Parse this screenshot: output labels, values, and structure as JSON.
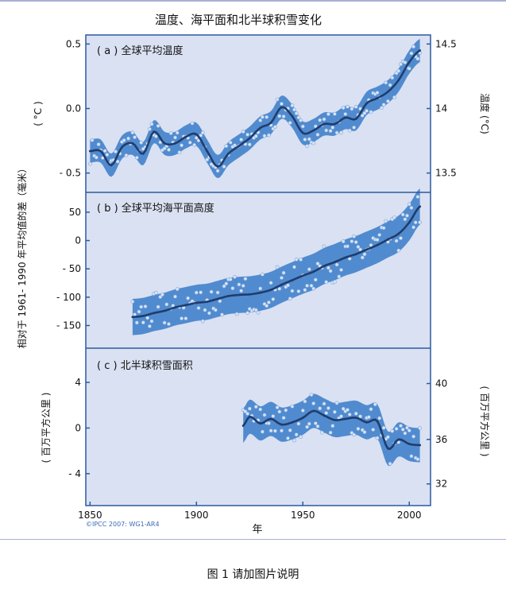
{
  "figure": {
    "title": "温度、海平面和北半球积雪变化",
    "credit": "©IPCC  2007: WG1-AR4",
    "xlabel": "年",
    "shared_ylabel": "相对于 1961- 1990 年平均值的差（毫米）",
    "x_ticks": [
      1850,
      1900,
      1950,
      2000
    ]
  },
  "caption": "图 1 请加图片说明",
  "colors": {
    "panel_bg": "#dae1f2",
    "band": "#4a86cc",
    "line": "#1f3d6e",
    "dots": "#d6e4f6",
    "frame": "#2c5aa0"
  },
  "chart_data": [
    {
      "type": "line",
      "label": "( a ) 全球平均温度",
      "ylabel_left": "( °C )",
      "ylabel_right": "温度 (°C)",
      "xlim": [
        1848,
        2010
      ],
      "ylim": [
        -0.65,
        0.57
      ],
      "left_ticks": [
        {
          "v": 0.5,
          "t": "0.5"
        },
        {
          "v": 0.0,
          "t": "0.0"
        },
        {
          "v": -0.5,
          "t": "- 0.5"
        }
      ],
      "right_ticks": [
        {
          "v": 0.5,
          "t": "14.5"
        },
        {
          "v": 0.0,
          "t": "14"
        },
        {
          "v": -0.5,
          "t": "13.5"
        }
      ],
      "band_width": 0.09,
      "x": [
        1850,
        1855,
        1860,
        1865,
        1870,
        1875,
        1880,
        1885,
        1890,
        1895,
        1900,
        1905,
        1910,
        1915,
        1920,
        1925,
        1930,
        1935,
        1940,
        1945,
        1950,
        1955,
        1960,
        1965,
        1970,
        1975,
        1980,
        1985,
        1990,
        1995,
        2000,
        2005
      ],
      "y": [
        -0.33,
        -0.33,
        -0.44,
        -0.3,
        -0.27,
        -0.35,
        -0.18,
        -0.27,
        -0.27,
        -0.22,
        -0.2,
        -0.33,
        -0.45,
        -0.35,
        -0.29,
        -0.23,
        -0.15,
        -0.11,
        0.01,
        -0.06,
        -0.19,
        -0.17,
        -0.12,
        -0.12,
        -0.07,
        -0.08,
        0.04,
        0.08,
        0.13,
        0.22,
        0.36,
        0.45
      ]
    },
    {
      "type": "line",
      "label": "( b ) 全球平均海平面高度",
      "xlim": [
        1848,
        2010
      ],
      "ylim": [
        -190,
        85
      ],
      "left_ticks": [
        {
          "v": 50,
          "t": "50"
        },
        {
          "v": 0,
          "t": "0"
        },
        {
          "v": -50,
          "t": "- 50"
        },
        {
          "v": -100,
          "t": "- 100"
        },
        {
          "v": -150,
          "t": "- 150"
        }
      ],
      "band_width": 32,
      "x": [
        1870,
        1875,
        1880,
        1885,
        1890,
        1895,
        1900,
        1905,
        1910,
        1915,
        1920,
        1925,
        1930,
        1935,
        1940,
        1945,
        1950,
        1955,
        1960,
        1965,
        1970,
        1975,
        1980,
        1985,
        1990,
        1995,
        2000,
        2005
      ],
      "y": [
        -135,
        -133,
        -128,
        -124,
        -118,
        -114,
        -110,
        -108,
        -103,
        -98,
        -96,
        -95,
        -92,
        -87,
        -78,
        -70,
        -62,
        -55,
        -45,
        -38,
        -30,
        -24,
        -16,
        -8,
        2,
        12,
        32,
        60
      ]
    },
    {
      "type": "line",
      "label": "( c ) 北半球积雪面积",
      "ylabel_left": "( 百万平方公里 )",
      "ylabel_right": "( 百万平方公里 )",
      "xlim": [
        1848,
        2010
      ],
      "ylim": [
        -6.8,
        7
      ],
      "left_ticks": [
        {
          "v": 4,
          "t": "4"
        },
        {
          "v": 0,
          "t": "0"
        },
        {
          "v": -4,
          "t": "- 4"
        }
      ],
      "right_ticks": [
        {
          "v": 3.9,
          "t": "40"
        },
        {
          "v": -1.0,
          "t": "36"
        },
        {
          "v": -4.9,
          "t": "32"
        }
      ],
      "band_width": 1.5,
      "x": [
        1922,
        1925,
        1930,
        1935,
        1940,
        1945,
        1950,
        1955,
        1960,
        1965,
        1970,
        1975,
        1980,
        1985,
        1990,
        1995,
        2000,
        2005
      ],
      "y": [
        0.2,
        1.0,
        0.4,
        0.8,
        0.3,
        0.5,
        0.9,
        1.5,
        1.1,
        0.7,
        0.8,
        0.9,
        0.5,
        0.6,
        -1.8,
        -1.0,
        -1.4,
        -1.5
      ]
    }
  ]
}
